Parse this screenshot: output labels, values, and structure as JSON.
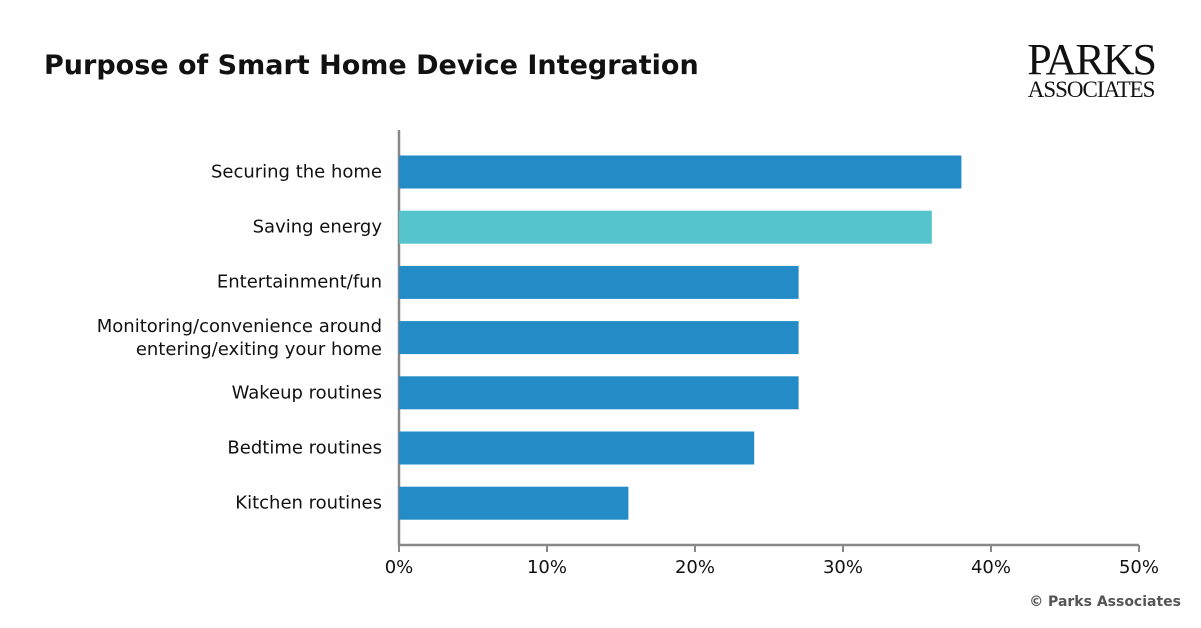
{
  "chart_data": {
    "type": "bar",
    "orientation": "horizontal",
    "title": "Purpose of Smart Home Device Integration",
    "logo": [
      "PARKS",
      "ASSOCIATES"
    ],
    "source": "© Parks Associates",
    "categories": [
      "Securing the home",
      "Saving energy",
      "Entertainment/fun",
      "Monitoring/convenience around entering/exiting your home",
      "Wakeup routines",
      "Bedtime routines",
      "Kitchen routines"
    ],
    "values": [
      38,
      36,
      27,
      27,
      27,
      24,
      15.5
    ],
    "colors": [
      "#238bc5",
      "#56c4cc",
      "#238bc5",
      "#238bc5",
      "#238bc5",
      "#238bc5",
      "#238bc5"
    ],
    "xlim": [
      0,
      50
    ],
    "xticks": [
      {
        "value": 0,
        "label": "0%"
      },
      {
        "value": 10,
        "label": "10%"
      },
      {
        "value": 20,
        "label": "20%"
      },
      {
        "value": 30,
        "label": "30%"
      },
      {
        "value": 40,
        "label": "40%"
      },
      {
        "value": 50,
        "label": "50%"
      }
    ],
    "grid": false
  }
}
